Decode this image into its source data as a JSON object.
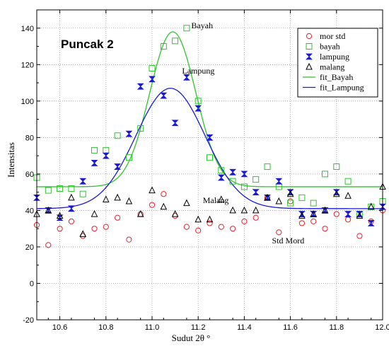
{
  "chart_data": {
    "type": "scatter",
    "title": "Puncak 2",
    "xlabel": "Sudut 2θ °",
    "ylabel": "Intensitas",
    "xlim": [
      10.5,
      12.0
    ],
    "ylim": [
      -20,
      150
    ],
    "x_ticks": [
      10.6,
      10.8,
      11.0,
      11.2,
      11.4,
      11.6,
      11.8,
      12.0
    ],
    "y_ticks": [
      -20,
      0,
      20,
      40,
      60,
      80,
      100,
      120,
      140
    ],
    "x_tick_labels": [
      "10.6",
      "10.8",
      "11.0",
      "11.2",
      "11.4",
      "11.6",
      "11.8",
      "12.0"
    ],
    "y_tick_labels": [
      "-20",
      "0",
      "20",
      "40",
      "60",
      "80",
      "100",
      "120",
      "140"
    ],
    "grid": true,
    "legend_position": "top-right",
    "series": [
      {
        "name": "mor std",
        "marker": "circle",
        "color": "#e8202a",
        "x": [
          10.5,
          10.55,
          10.6,
          10.65,
          10.7,
          10.75,
          10.8,
          10.85,
          10.9,
          10.95,
          11.0,
          11.05,
          11.1,
          11.15,
          11.2,
          11.25,
          11.3,
          11.35,
          11.4,
          11.45,
          11.5,
          11.55,
          11.6,
          11.65,
          11.7,
          11.75,
          11.8,
          11.85,
          11.9,
          11.95,
          12.0
        ],
        "y": [
          32,
          21,
          30,
          34,
          26,
          30,
          31,
          36,
          24,
          38,
          43,
          49,
          37,
          31,
          29,
          33,
          31,
          30,
          34,
          36,
          47,
          28,
          45,
          33,
          34,
          30,
          38,
          35,
          26,
          34,
          40
        ]
      },
      {
        "name": "bayah",
        "marker": "square",
        "color": "#2ec42e",
        "x": [
          10.5,
          10.55,
          10.6,
          10.65,
          10.7,
          10.75,
          10.8,
          10.85,
          10.9,
          10.95,
          11.0,
          11.05,
          11.1,
          11.15,
          11.2,
          11.25,
          11.3,
          11.35,
          11.4,
          11.45,
          11.5,
          11.55,
          11.6,
          11.65,
          11.7,
          11.75,
          11.8,
          11.85,
          11.9,
          11.95,
          12.0
        ],
        "y": [
          58,
          51,
          52,
          52,
          49,
          73,
          73,
          81,
          69,
          85,
          118,
          130,
          133,
          140,
          100,
          69,
          62,
          56,
          53,
          57,
          64,
          53,
          44,
          47,
          44,
          60,
          64,
          56,
          38,
          42,
          45
        ]
      },
      {
        "name": "lampung",
        "marker": "hourglass",
        "color": "#1a1ad6",
        "x": [
          10.5,
          10.55,
          10.6,
          10.65,
          10.7,
          10.75,
          10.8,
          10.85,
          10.9,
          10.95,
          11.0,
          11.05,
          11.1,
          11.15,
          11.2,
          11.25,
          11.3,
          11.35,
          11.4,
          11.45,
          11.5,
          11.55,
          11.6,
          11.65,
          11.7,
          11.75,
          11.8,
          11.85,
          11.9,
          11.95,
          12.0
        ],
        "y": [
          47,
          40,
          36,
          41,
          56,
          66,
          70,
          64,
          82,
          108,
          112,
          103,
          88,
          113,
          96,
          80,
          58,
          61,
          60,
          50,
          47,
          56,
          50,
          38,
          38,
          40,
          50,
          38,
          38,
          33,
          42
        ]
      },
      {
        "name": "malang",
        "marker": "triangle",
        "color": "#000000",
        "x": [
          10.5,
          10.55,
          10.6,
          10.65,
          10.7,
          10.75,
          10.8,
          10.85,
          10.9,
          10.95,
          11.0,
          11.05,
          11.1,
          11.15,
          11.2,
          11.25,
          11.3,
          11.35,
          11.4,
          11.45,
          11.5,
          11.55,
          11.6,
          11.65,
          11.7,
          11.75,
          11.8,
          11.85,
          11.9,
          11.95,
          12.0
        ],
        "y": [
          38,
          40,
          37,
          47,
          27,
          38,
          46,
          47,
          45,
          38,
          51,
          42,
          38,
          44,
          35,
          35,
          46,
          40,
          40,
          40,
          47,
          45,
          49,
          37,
          38,
          40,
          49,
          48,
          37,
          42,
          53
        ]
      },
      {
        "name": "fit_Bayah",
        "type": "line",
        "color": "#2ec42e",
        "model": "gaussian",
        "baseline": 53,
        "amplitude": 85,
        "center": 11.09,
        "sigma": 0.1
      },
      {
        "name": "fit_Lampung",
        "type": "line",
        "color": "#1a1ad6",
        "model": "gaussian",
        "baseline": 41,
        "amplitude": 66,
        "center": 11.08,
        "sigma": 0.15
      }
    ],
    "annotations": [
      {
        "text": "Bayah",
        "x": 11.17,
        "y": 140
      },
      {
        "text": "Lampung",
        "x": 11.13,
        "y": 115
      },
      {
        "text": "Malang",
        "x": 11.22,
        "y": 44
      },
      {
        "text": "Std Mord",
        "x": 11.52,
        "y": 22
      }
    ]
  }
}
